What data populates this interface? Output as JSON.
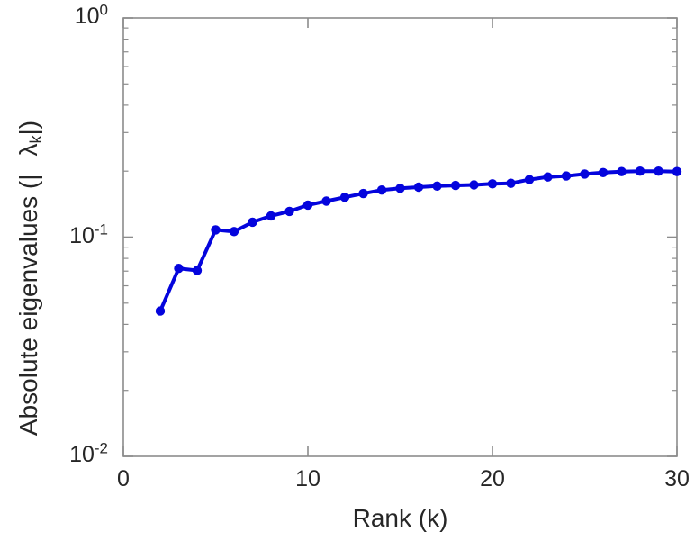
{
  "figure": {
    "background": "#ffffff"
  },
  "chart_data": {
    "type": "line",
    "title": "",
    "xlabel": "Rank (k)",
    "ylabel": {
      "prefix": "Absolute eigenvalues (|",
      "symbol": "λ",
      "subscript": "k",
      "suffix": "|)"
    },
    "series_name": "absolute-eigenvalues",
    "x": [
      2,
      3,
      4,
      5,
      6,
      7,
      8,
      9,
      10,
      11,
      12,
      13,
      14,
      15,
      16,
      17,
      18,
      19,
      20,
      21,
      22,
      23,
      24,
      25,
      26,
      27,
      28,
      29,
      30
    ],
    "values": [
      0.046,
      0.072,
      0.0705,
      0.108,
      0.106,
      0.117,
      0.125,
      0.131,
      0.14,
      0.146,
      0.152,
      0.158,
      0.164,
      0.167,
      0.169,
      0.171,
      0.172,
      0.173,
      0.175,
      0.176,
      0.183,
      0.188,
      0.19,
      0.194,
      0.197,
      0.199,
      0.2,
      0.2,
      0.199
    ],
    "xlim": [
      0,
      30
    ],
    "ylim": [
      0.01,
      1
    ],
    "xscale": "linear",
    "yscale": "log",
    "grid": false,
    "legend": "none",
    "xticks": [
      {
        "value": 0,
        "label": "0"
      },
      {
        "value": 10,
        "label": "10"
      },
      {
        "value": 20,
        "label": "20"
      },
      {
        "value": 30,
        "label": "30"
      }
    ],
    "yticks": [
      {
        "value": 1,
        "base": "10",
        "exp": "0"
      },
      {
        "value": 0.1,
        "base": "10",
        "exp": "-1"
      },
      {
        "value": 0.01,
        "base": "10",
        "exp": "-2"
      }
    ],
    "line_color": "#0404dd",
    "marker": "circle",
    "marker_color": "#0404dd",
    "axis_color": "#8c8c8c",
    "text_color": "#262626"
  }
}
